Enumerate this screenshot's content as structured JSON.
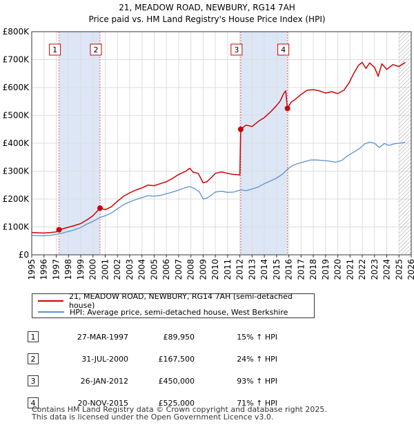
{
  "title": "21, MEADOW ROAD, NEWBURY, RG14 7AH",
  "subtitle": "Price paid vs. HM Land Registry's House Price Index (HPI)",
  "chart_data": {
    "type": "line",
    "xlim": [
      1995,
      2026
    ],
    "ylim": [
      0,
      800000
    ],
    "y_ticks": [
      0,
      100000,
      200000,
      300000,
      400000,
      500000,
      600000,
      700000,
      800000
    ],
    "y_tick_labels": [
      "£0",
      "£100K",
      "£200K",
      "£300K",
      "£400K",
      "£500K",
      "£600K",
      "£700K",
      "£800K"
    ],
    "x_ticks": [
      "1995",
      "1996",
      "1997",
      "1998",
      "1999",
      "2000",
      "2001",
      "2002",
      "2003",
      "2004",
      "2005",
      "2006",
      "2007",
      "2008",
      "2009",
      "2010",
      "2011",
      "2012",
      "2013",
      "2014",
      "2015",
      "2016",
      "2017",
      "2018",
      "2019",
      "2020",
      "2021",
      "2022",
      "2023",
      "2024",
      "2025",
      "2026"
    ],
    "grid": true,
    "hatched_after": 2025.0,
    "colors": {
      "property": "#cc0000",
      "hpi": "#5b8fcf",
      "shade": "#dde6f5",
      "marker_line": "#e06060"
    },
    "shaded_ranges": [
      [
        1997.23,
        2000.58
      ],
      [
        2012.07,
        2015.89
      ]
    ],
    "series": [
      {
        "name": "21, MEADOW ROAD, NEWBURY, RG14 7AH (semi-detached house)",
        "key": "property",
        "points": [
          [
            1995.0,
            80000
          ],
          [
            1995.5,
            79000
          ],
          [
            1996.0,
            78000
          ],
          [
            1996.5,
            80000
          ],
          [
            1997.0,
            82000
          ],
          [
            1997.23,
            89950
          ],
          [
            1997.6,
            94000
          ],
          [
            1998.0,
            99000
          ],
          [
            1998.5,
            105000
          ],
          [
            1999.0,
            112000
          ],
          [
            1999.5,
            125000
          ],
          [
            2000.0,
            140000
          ],
          [
            2000.58,
            167500
          ],
          [
            2001.0,
            162000
          ],
          [
            2001.5,
            172000
          ],
          [
            2002.0,
            192000
          ],
          [
            2002.5,
            210000
          ],
          [
            2003.0,
            222000
          ],
          [
            2003.5,
            232000
          ],
          [
            2004.0,
            240000
          ],
          [
            2004.5,
            250000
          ],
          [
            2005.0,
            248000
          ],
          [
            2005.5,
            255000
          ],
          [
            2006.0,
            262000
          ],
          [
            2006.5,
            274000
          ],
          [
            2007.0,
            288000
          ],
          [
            2007.6,
            300000
          ],
          [
            2007.9,
            310000
          ],
          [
            2008.2,
            296000
          ],
          [
            2008.6,
            292000
          ],
          [
            2009.0,
            258000
          ],
          [
            2009.3,
            262000
          ],
          [
            2009.7,
            278000
          ],
          [
            2010.0,
            292000
          ],
          [
            2010.5,
            297000
          ],
          [
            2011.0,
            292000
          ],
          [
            2011.5,
            288000
          ],
          [
            2011.9,
            287000
          ],
          [
            2012.0,
            286000
          ],
          [
            2012.07,
            450000
          ],
          [
            2012.5,
            465000
          ],
          [
            2013.0,
            460000
          ],
          [
            2013.5,
            478000
          ],
          [
            2014.0,
            492000
          ],
          [
            2014.5,
            512000
          ],
          [
            2015.0,
            535000
          ],
          [
            2015.3,
            552000
          ],
          [
            2015.6,
            580000
          ],
          [
            2015.75,
            588000
          ],
          [
            2015.89,
            525000
          ],
          [
            2016.2,
            548000
          ],
          [
            2016.6,
            560000
          ],
          [
            2017.0,
            575000
          ],
          [
            2017.5,
            590000
          ],
          [
            2018.0,
            592000
          ],
          [
            2018.5,
            588000
          ],
          [
            2019.0,
            580000
          ],
          [
            2019.5,
            585000
          ],
          [
            2020.0,
            578000
          ],
          [
            2020.5,
            590000
          ],
          [
            2020.9,
            615000
          ],
          [
            2021.3,
            650000
          ],
          [
            2021.7,
            680000
          ],
          [
            2022.0,
            690000
          ],
          [
            2022.3,
            668000
          ],
          [
            2022.6,
            688000
          ],
          [
            2023.0,
            672000
          ],
          [
            2023.3,
            640000
          ],
          [
            2023.6,
            685000
          ],
          [
            2024.0,
            665000
          ],
          [
            2024.5,
            682000
          ],
          [
            2025.0,
            675000
          ],
          [
            2025.5,
            690000
          ]
        ]
      },
      {
        "name": "HPI: Average price, semi-detached house, West Berkshire",
        "key": "hpi",
        "points": [
          [
            1995.0,
            70000
          ],
          [
            1995.5,
            69000
          ],
          [
            1996.0,
            68500
          ],
          [
            1996.5,
            70000
          ],
          [
            1997.0,
            73000
          ],
          [
            1997.5,
            78000
          ],
          [
            1998.0,
            84000
          ],
          [
            1998.5,
            90000
          ],
          [
            1999.0,
            98000
          ],
          [
            1999.5,
            110000
          ],
          [
            2000.0,
            120000
          ],
          [
            2000.58,
            134000
          ],
          [
            2001.0,
            140000
          ],
          [
            2001.5,
            150000
          ],
          [
            2002.0,
            165000
          ],
          [
            2002.5,
            180000
          ],
          [
            2003.0,
            190000
          ],
          [
            2003.5,
            198000
          ],
          [
            2004.0,
            205000
          ],
          [
            2004.5,
            212000
          ],
          [
            2005.0,
            210000
          ],
          [
            2005.5,
            213000
          ],
          [
            2006.0,
            219000
          ],
          [
            2006.5,
            225000
          ],
          [
            2007.0,
            232000
          ],
          [
            2007.5,
            240000
          ],
          [
            2007.9,
            245000
          ],
          [
            2008.3,
            238000
          ],
          [
            2008.7,
            225000
          ],
          [
            2009.0,
            200000
          ],
          [
            2009.3,
            203000
          ],
          [
            2009.7,
            215000
          ],
          [
            2010.0,
            225000
          ],
          [
            2010.5,
            228000
          ],
          [
            2011.0,
            224000
          ],
          [
            2011.5,
            225000
          ],
          [
            2012.07,
            233000
          ],
          [
            2012.5,
            230000
          ],
          [
            2013.0,
            236000
          ],
          [
            2013.5,
            243000
          ],
          [
            2014.0,
            255000
          ],
          [
            2014.5,
            265000
          ],
          [
            2015.0,
            275000
          ],
          [
            2015.5,
            290000
          ],
          [
            2015.89,
            307000
          ],
          [
            2016.3,
            320000
          ],
          [
            2016.8,
            328000
          ],
          [
            2017.3,
            334000
          ],
          [
            2017.8,
            340000
          ],
          [
            2018.3,
            340000
          ],
          [
            2018.8,
            338000
          ],
          [
            2019.3,
            336000
          ],
          [
            2019.8,
            332000
          ],
          [
            2020.3,
            338000
          ],
          [
            2020.8,
            355000
          ],
          [
            2021.3,
            368000
          ],
          [
            2021.8,
            382000
          ],
          [
            2022.2,
            398000
          ],
          [
            2022.6,
            404000
          ],
          [
            2023.0,
            400000
          ],
          [
            2023.4,
            385000
          ],
          [
            2023.8,
            399000
          ],
          [
            2024.2,
            392000
          ],
          [
            2024.6,
            398000
          ],
          [
            2025.0,
            400000
          ],
          [
            2025.5,
            403000
          ]
        ]
      }
    ],
    "sales": [
      {
        "label": "1",
        "x": 1997.23,
        "price": 89950
      },
      {
        "label": "2",
        "x": 2000.58,
        "price": 167500
      },
      {
        "label": "3",
        "x": 2012.07,
        "price": 450000
      },
      {
        "label": "4",
        "x": 2015.89,
        "price": 525000
      }
    ]
  },
  "legend": {
    "property_label": "21, MEADOW ROAD, NEWBURY, RG14 7AH (semi-detached house)",
    "hpi_label": "HPI: Average price, semi-detached house, West Berkshire"
  },
  "table": [
    {
      "num": "1",
      "date": "27-MAR-1997",
      "price": "£89,950",
      "hpi": "15% ↑ HPI"
    },
    {
      "num": "2",
      "date": "31-JUL-2000",
      "price": "£167,500",
      "hpi": "24% ↑ HPI"
    },
    {
      "num": "3",
      "date": "26-JAN-2012",
      "price": "£450,000",
      "hpi": "93% ↑ HPI"
    },
    {
      "num": "4",
      "date": "20-NOV-2015",
      "price": "£525,000",
      "hpi": "71% ↑ HPI"
    }
  ],
  "footer": {
    "line1": "Contains HM Land Registry data © Crown copyright and database right 2025.",
    "line2": "This data is licensed under the Open Government Licence v3.0."
  }
}
